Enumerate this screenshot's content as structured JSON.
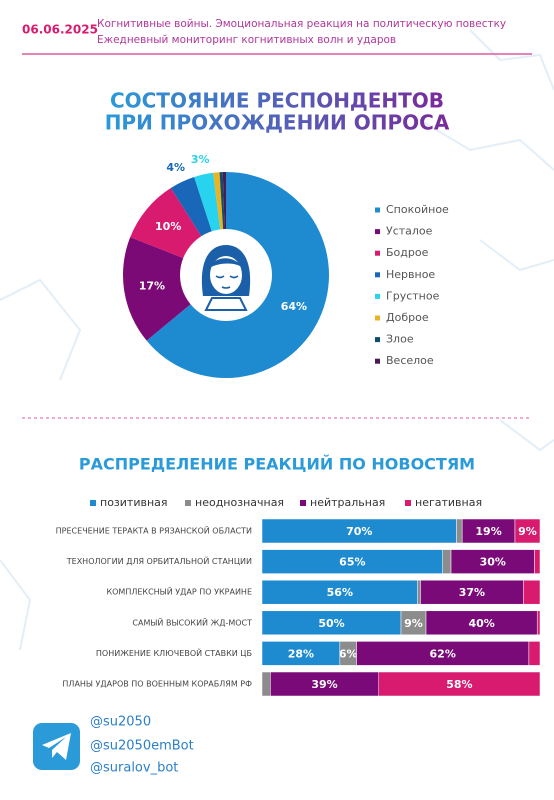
{
  "header": {
    "date": "06.06.2025",
    "line1": "Когнитивные войны. Эмоциональная реакция на политическую повестку",
    "line2": "Ежедневный мониторинг когнитивных волн и ударов"
  },
  "chart_data": [
    {
      "type": "pie",
      "title": [
        "СОСТОЯНИЕ РЕСПОНДЕНТОВ",
        "ПРИ ПРОХОЖДЕНИИ ОПРОСА"
      ],
      "categories": [
        "Спокойное",
        "Усталое",
        "Бодрое",
        "Нервное",
        "Грустное",
        "Доброе",
        "Злое",
        "Веселое"
      ],
      "values": [
        64,
        17,
        10,
        4,
        3,
        1,
        0.5,
        0.5
      ],
      "value_labels": [
        "64%",
        "17%",
        "10%",
        "4%",
        "3%",
        null,
        null,
        null
      ],
      "colors": [
        "#1e8bd1",
        "#7b0a76",
        "#d81b6f",
        "#1967b8",
        "#27d3ef",
        "#e8b424",
        "#0e4d6b",
        "#4b1a55"
      ]
    },
    {
      "type": "bar",
      "orientation": "horizontal",
      "stacked": true,
      "title": "РАСПРЕДЕЛЕНИЕ РЕАКЦИЙ ПО НОВОСТЯМ",
      "categories": [
        "ПРЕСЕЧЕНИЕ ТЕРАКТА В РЯЗАНСКОЙ ОБЛАСТИ",
        "ТЕХНОЛОГИИ ДЛЯ ОРБИТАЛЬНОЙ СТАНЦИИ",
        "КОМПЛЕКСНЫЙ УДАР ПО УКРАИНЕ",
        "САМЫЙ ВЫСОКИЙ ЖД-МОСТ",
        "ПОНИЖЕНИЕ КЛЮЧЕВОЙ СТАВКИ ЦБ",
        "ПЛАНЫ УДАРОВ ПО ВОЕННЫМ КОРАБЛЯМ РФ"
      ],
      "xlim": [
        0,
        100
      ],
      "series": [
        {
          "name": "позитивная",
          "color": "#1e8bd1",
          "values": [
            70,
            65,
            56,
            50,
            28,
            0
          ],
          "value_labels": [
            "70%",
            "65%",
            "56%",
            "50%",
            "28%",
            null
          ]
        },
        {
          "name": "неоднозначная",
          "color": "#8c8c8c",
          "values": [
            2,
            3,
            1,
            9,
            6,
            3
          ],
          "value_labels": [
            null,
            null,
            null,
            "9%",
            "6%",
            null
          ]
        },
        {
          "name": "нейтральная",
          "color": "#7a0a78",
          "values": [
            19,
            30,
            37,
            40,
            62,
            39
          ],
          "value_labels": [
            "19%",
            "30%",
            "37%",
            "40%",
            "62%",
            "39%"
          ]
        },
        {
          "name": "негативная",
          "color": "#d81b6f",
          "values": [
            9,
            2,
            6,
            1,
            4,
            58
          ],
          "value_labels": [
            "9%",
            null,
            null,
            null,
            null,
            "58%"
          ]
        }
      ]
    }
  ],
  "footer": {
    "handles": [
      "@su2050",
      "@su2050emBot",
      "@suralov_bot"
    ]
  }
}
